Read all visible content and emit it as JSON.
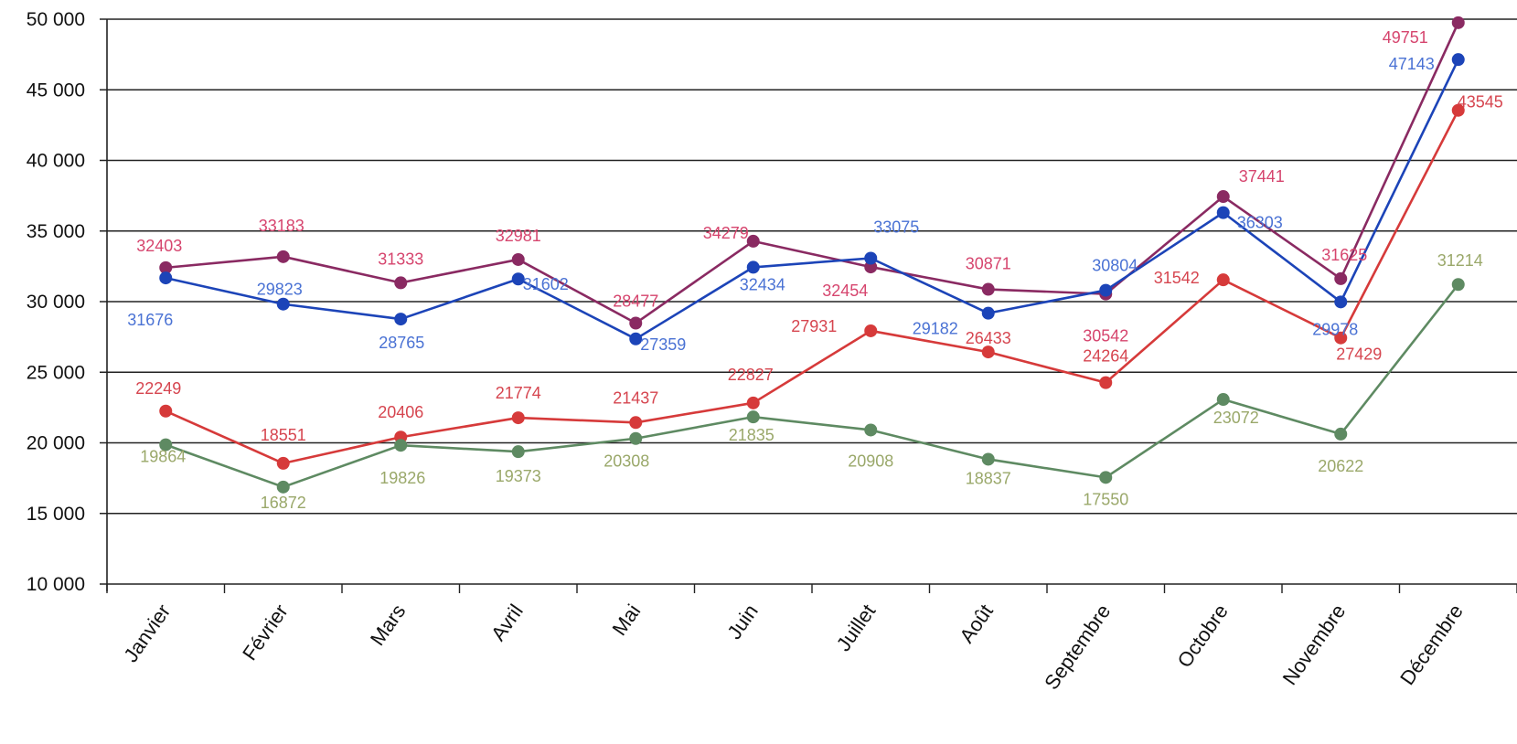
{
  "chart_data": {
    "type": "line",
    "title": "",
    "xlabel": "",
    "ylabel": "",
    "categories": [
      "Janvier",
      "Février",
      "Mars",
      "Avril",
      "Mai",
      "Juin",
      "Juillet",
      "Août",
      "Septembre",
      "Octobre",
      "Novembre",
      "Décembre"
    ],
    "ylim": [
      10000,
      50000
    ],
    "yticks": [
      10000,
      15000,
      20000,
      25000,
      30000,
      35000,
      40000,
      45000,
      50000
    ],
    "ytick_labels": [
      "10 000",
      "15 000",
      "20 000",
      "25 000",
      "30 000",
      "35 000",
      "40 000",
      "45 000",
      "50 000"
    ],
    "grid": true,
    "legend": "none",
    "series": [
      {
        "color": "#8a2a62",
        "label_color": "#d6456e",
        "values": [
          32403,
          33183,
          31333,
          32981,
          28477,
          34279,
          32454,
          30871,
          30542,
          37441,
          31625,
          49751
        ],
        "labels": [
          "32403",
          "33183",
          "31333",
          "32981",
          "28477",
          "34279",
          "32454",
          "30871",
          "30542",
          "37441",
          "31625",
          "49751"
        ]
      },
      {
        "color": "#1c44b8",
        "label_color": "#4a72d4",
        "values": [
          31676,
          29823,
          28765,
          31602,
          27359,
          32434,
          33075,
          29182,
          30804,
          36303,
          29978,
          47143
        ],
        "labels": [
          "31676",
          "29823",
          "28765",
          "31602",
          "27359",
          "32434",
          "33075",
          "29182",
          "30804",
          "36303",
          "29978",
          "47143"
        ]
      },
      {
        "color": "#d63a3a",
        "label_color": "#d6454f",
        "values": [
          22249,
          18551,
          20406,
          21774,
          21437,
          22827,
          27931,
          26433,
          24264,
          31542,
          27429,
          43545
        ],
        "labels": [
          "22249",
          "18551",
          "20406",
          "21774",
          "21437",
          "22827",
          "27931",
          "26433",
          "24264",
          "31542",
          "27429",
          "43545"
        ]
      },
      {
        "color": "#5e8a62",
        "label_color": "#9aa86a",
        "values": [
          19864,
          16872,
          19826,
          19373,
          20308,
          21835,
          20908,
          18837,
          17550,
          23072,
          20622,
          31214
        ],
        "labels": [
          "19864",
          "16872",
          "19826",
          "19373",
          "20308",
          "21835",
          "20908",
          "18837",
          "17550",
          "23072",
          "20622",
          "31214"
        ]
      }
    ]
  }
}
